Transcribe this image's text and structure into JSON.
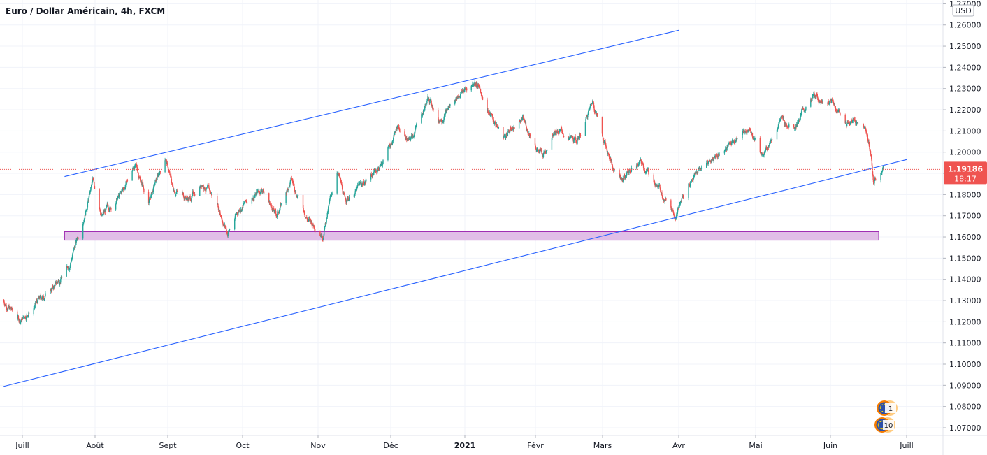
{
  "chart_title": "Euro / Dollar Américain, 4h, FXCM",
  "currency_label": "USD",
  "colors": {
    "up": "#26a69a",
    "down": "#ef5350",
    "trendline": "#2962ff",
    "zone_fill": "#e1bee7",
    "zone_stroke": "#9c27b0",
    "price_line": "#ef5350",
    "grid": "#f0f3fa"
  },
  "chart_data": {
    "type": "candlestick",
    "symbol": "EUR/USD",
    "timeframe": "4h",
    "source": "FXCM",
    "ylim": [
      1.065,
      1.271
    ],
    "y_ticks": [
      "1.27000",
      "1.26000",
      "1.25000",
      "1.24000",
      "1.23000",
      "1.22000",
      "1.21000",
      "1.20000",
      "1.19000",
      "1.18000",
      "1.17000",
      "1.16000",
      "1.15000",
      "1.14000",
      "1.13000",
      "1.12000",
      "1.11000",
      "1.10000",
      "1.09000",
      "1.08000",
      "1.07000"
    ],
    "x_labels": [
      "Juill",
      "Août",
      "Sept",
      "Oct",
      "Nov",
      "Déc",
      "2021",
      "Févr",
      "Mars",
      "Avr",
      "Mai",
      "Juin",
      "Juill"
    ],
    "x_dates": [
      "2020-07-01",
      "2020-08-01",
      "2020-09-01",
      "2020-10-01",
      "2020-11-01",
      "2020-12-01",
      "2021-01-01",
      "2021-02-01",
      "2021-03-01",
      "2021-04-01",
      "2021-05-01",
      "2021-06-01",
      "2021-07-01"
    ],
    "price_path": [
      [
        "2020-06-23",
        1.13
      ],
      [
        "2020-06-30",
        1.1205
      ],
      [
        "2020-07-08",
        1.13
      ],
      [
        "2020-07-15",
        1.137
      ],
      [
        "2020-07-21",
        1.147
      ],
      [
        "2020-07-26",
        1.165
      ],
      [
        "2020-07-31",
        1.186
      ],
      [
        "2020-08-04",
        1.17
      ],
      [
        "2020-08-12",
        1.18
      ],
      [
        "2020-08-18",
        1.194
      ],
      [
        "2020-08-24",
        1.177
      ],
      [
        "2020-08-31",
        1.198
      ],
      [
        "2020-09-03",
        1.183
      ],
      [
        "2020-09-10",
        1.178
      ],
      [
        "2020-09-15",
        1.186
      ],
      [
        "2020-09-21",
        1.175
      ],
      [
        "2020-09-25",
        1.162
      ],
      [
        "2020-09-30",
        1.174
      ],
      [
        "2020-10-09",
        1.183
      ],
      [
        "2020-10-15",
        1.17
      ],
      [
        "2020-10-21",
        1.187
      ],
      [
        "2020-10-28",
        1.168
      ],
      [
        "2020-11-03",
        1.162
      ],
      [
        "2020-11-09",
        1.192
      ],
      [
        "2020-11-12",
        1.177
      ],
      [
        "2020-11-20",
        1.186
      ],
      [
        "2020-11-27",
        1.194
      ],
      [
        "2020-12-04",
        1.212
      ],
      [
        "2020-12-09",
        1.205
      ],
      [
        "2020-12-17",
        1.226
      ],
      [
        "2020-12-21",
        1.215
      ],
      [
        "2020-12-30",
        1.228
      ],
      [
        "2021-01-06",
        1.2335
      ],
      [
        "2021-01-12",
        1.218
      ],
      [
        "2021-01-18",
        1.207
      ],
      [
        "2021-01-26",
        1.216
      ],
      [
        "2021-02-04",
        1.198
      ],
      [
        "2021-02-09",
        1.212
      ],
      [
        "2021-02-18",
        1.204
      ],
      [
        "2021-02-25",
        1.224
      ],
      [
        "2021-03-05",
        1.193
      ],
      [
        "2021-03-09",
        1.188
      ],
      [
        "2021-03-16",
        1.195
      ],
      [
        "2021-03-23",
        1.185
      ],
      [
        "2021-03-31",
        1.171
      ],
      [
        "2021-04-06",
        1.188
      ],
      [
        "2021-04-13",
        1.196
      ],
      [
        "2021-04-22",
        1.205
      ],
      [
        "2021-04-29",
        1.212
      ],
      [
        "2021-05-04",
        1.198
      ],
      [
        "2021-05-11",
        1.215
      ],
      [
        "2021-05-17",
        1.213
      ],
      [
        "2021-05-25",
        1.226
      ],
      [
        "2021-06-01",
        1.224
      ],
      [
        "2021-06-07",
        1.215
      ],
      [
        "2021-06-11",
        1.214
      ],
      [
        "2021-06-15",
        1.212
      ],
      [
        "2021-06-17",
        1.199
      ],
      [
        "2021-06-18",
        1.187
      ],
      [
        "2021-06-22",
        1.19186
      ]
    ],
    "trendlines": [
      {
        "name": "upper channel",
        "from": [
          "2020-07-19",
          1.1885
        ],
        "to": [
          "2021-04-01",
          1.2575
        ]
      },
      {
        "name": "lower channel",
        "from": [
          "2020-06-23",
          1.0895
        ],
        "to": [
          "2021-07-01",
          1.1965
        ]
      }
    ],
    "zone": {
      "from_date": "2020-07-19",
      "to_date": "2021-06-20",
      "low": 1.1585,
      "high": 1.1625
    },
    "last_price": {
      "value": "1.19186",
      "countdown": "18:17"
    },
    "events": [
      "1",
      "10"
    ]
  }
}
